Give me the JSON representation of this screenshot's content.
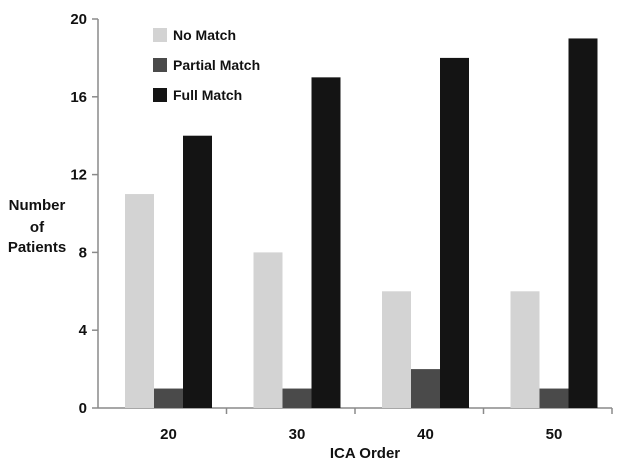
{
  "chart_data": {
    "type": "bar",
    "title": "",
    "xlabel": "ICA Order",
    "ylabel": [
      "Number",
      "of",
      "Patients"
    ],
    "ylim": [
      0,
      20
    ],
    "yticks": [
      "0",
      "4",
      "8",
      "12",
      "16",
      "20"
    ],
    "categories": [
      "20",
      "30",
      "40",
      "50"
    ],
    "series": [
      {
        "name": "No Match",
        "color": "#d3d3d3",
        "values": [
          11,
          8,
          6,
          6
        ]
      },
      {
        "name": "Partial Match",
        "color": "#4a4a4a",
        "values": [
          1,
          1,
          2,
          1
        ]
      },
      {
        "name": "Full Match",
        "color": "#141414",
        "values": [
          14,
          17,
          18,
          19
        ]
      }
    ],
    "legend": "top-left",
    "grid": false
  }
}
